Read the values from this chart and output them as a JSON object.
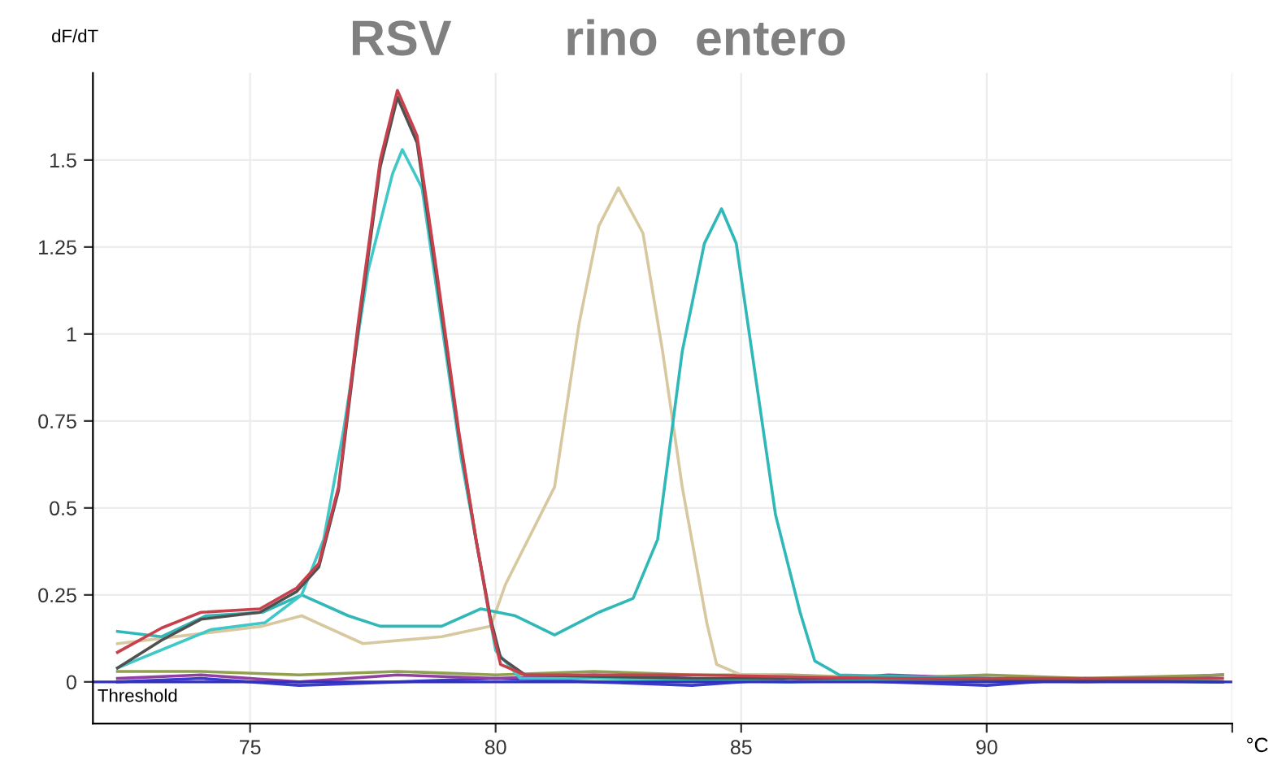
{
  "chart_data": {
    "type": "line",
    "xlabel": "°C",
    "ylabel": "dF/dT",
    "xlim": [
      71.8,
      95
    ],
    "xticks": [
      75,
      80,
      85,
      90,
      {
        "value": 95,
        "label": null
      }
    ],
    "ylim": [
      -0.12,
      1.75
    ],
    "yticks": [
      0,
      0.25,
      0.5,
      0.75,
      1,
      1.25,
      1.5
    ],
    "grid": true,
    "marker": "none",
    "line_style": "solid",
    "ref_lines": [
      {
        "axis": "y",
        "value": 0,
        "label": "Threshold",
        "color": "#3030c0"
      }
    ],
    "annotations": [
      "RSV",
      "rino",
      "entero"
    ],
    "series": [
      {
        "color": "#3a3acc",
        "x": [
          72.3,
          74,
          76,
          78,
          80,
          82,
          84,
          86,
          88,
          90,
          92,
          94.8
        ],
        "values": [
          0.0,
          0.01,
          -0.01,
          0.0,
          0.01,
          0.0,
          -0.01,
          0.01,
          0.0,
          -0.01,
          0.01,
          0.0
        ]
      },
      {
        "color": "#9040a0",
        "x": [
          72.3,
          74,
          76,
          78,
          80,
          82,
          84,
          86,
          88,
          90,
          92,
          94.8
        ],
        "values": [
          0.01,
          0.02,
          0.0,
          0.02,
          0.01,
          0.02,
          0.01,
          0.0,
          0.02,
          0.01,
          0.0,
          0.02
        ]
      },
      {
        "color": "#90a050",
        "x": [
          72.3,
          74,
          76,
          78,
          80,
          82,
          84,
          86,
          88,
          90,
          92,
          94.8
        ],
        "values": [
          0.03,
          0.03,
          0.02,
          0.03,
          0.02,
          0.03,
          0.02,
          0.02,
          0.01,
          0.02,
          0.01,
          0.02
        ]
      },
      {
        "color": "#d8c8a0",
        "x": [
          72.3,
          75.25,
          76.05,
          77.3,
          78.9,
          79.9,
          80.2,
          81.2,
          81.7,
          82.1,
          82.5,
          83.0,
          83.4,
          83.8,
          84.3,
          84.5,
          85,
          92,
          94.8
        ],
        "values": [
          0.11,
          0.16,
          0.19,
          0.11,
          0.13,
          0.16,
          0.28,
          0.56,
          1.03,
          1.31,
          1.42,
          1.29,
          0.95,
          0.56,
          0.17,
          0.05,
          0.02,
          0.0,
          0.01
        ]
      },
      {
        "color": "#30b8b8",
        "x": [
          72.3,
          73.2,
          74.1,
          75.25,
          76.05,
          77.0,
          77.65,
          78.9,
          79.7,
          80.4,
          81.2,
          82.1,
          82.8,
          83.3,
          83.8,
          84.25,
          84.6,
          84.9,
          85.3,
          85.7,
          86.2,
          86.5,
          87,
          90,
          94.8
        ],
        "values": [
          0.145,
          0.13,
          0.19,
          0.2,
          0.25,
          0.19,
          0.16,
          0.16,
          0.21,
          0.19,
          0.135,
          0.2,
          0.24,
          0.41,
          0.95,
          1.26,
          1.36,
          1.26,
          0.87,
          0.48,
          0.2,
          0.06,
          0.02,
          0.01,
          0.0
        ]
      },
      {
        "color": "#40c8c8",
        "x": [
          72.3,
          74.2,
          75.3,
          76.05,
          76.5,
          76.9,
          77.4,
          77.9,
          78.1,
          78.5,
          78.9,
          79.3,
          79.7,
          80.0,
          80.5,
          82,
          86,
          90,
          94.8
        ],
        "values": [
          0.04,
          0.15,
          0.17,
          0.25,
          0.41,
          0.72,
          1.18,
          1.46,
          1.53,
          1.42,
          1.03,
          0.64,
          0.33,
          0.09,
          0.01,
          0.01,
          0.0,
          0.01,
          0.0
        ]
      },
      {
        "color": "#505050",
        "x": [
          72.3,
          73.2,
          74.0,
          75.2,
          75.95,
          76.4,
          76.8,
          77.2,
          77.65,
          78.0,
          78.4,
          78.8,
          79.25,
          79.6,
          79.9,
          80.1,
          80.6,
          84,
          88,
          94.8
        ],
        "values": [
          0.04,
          0.12,
          0.18,
          0.2,
          0.26,
          0.33,
          0.55,
          1.01,
          1.48,
          1.68,
          1.55,
          1.16,
          0.71,
          0.41,
          0.18,
          0.07,
          0.02,
          0.01,
          0.01,
          0.0
        ]
      },
      {
        "color": "#c8404c",
        "x": [
          72.3,
          73.2,
          74.0,
          75.2,
          75.95,
          76.4,
          76.8,
          77.2,
          77.65,
          78.0,
          78.4,
          78.8,
          79.25,
          79.6,
          79.9,
          80.1,
          80.6,
          84,
          88,
          94.8
        ],
        "values": [
          0.085,
          0.155,
          0.2,
          0.21,
          0.27,
          0.34,
          0.56,
          1.03,
          1.5,
          1.7,
          1.57,
          1.18,
          0.72,
          0.41,
          0.17,
          0.05,
          0.02,
          0.02,
          0.01,
          0.01
        ]
      }
    ]
  }
}
